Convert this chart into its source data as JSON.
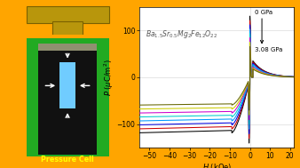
{
  "fig_width": 3.38,
  "fig_height": 1.89,
  "dpi": 100,
  "bg_color": "#FFA500",
  "cell_outer_color": "#22AA22",
  "cell_inner_color": "#111111",
  "cell_gasket_color": "#909070",
  "sample_color": "#70CCFF",
  "piston_color": "#B8960C",
  "pressure_cell_label": "Pressure Cell",
  "xlabel": "$H$ (kOe)",
  "ylabel": "$P$ ($\\mu$C/m$^2$)",
  "xlim": [
    -55,
    22
  ],
  "ylim": [
    -150,
    150
  ],
  "xticks": [
    -50,
    -40,
    -30,
    -20,
    -10,
    0,
    10,
    20
  ],
  "yticks": [
    -100,
    0,
    100
  ],
  "label_0gpa": "0 GPa",
  "label_max_gpa": "3.08 GPa",
  "colors": [
    "#000000",
    "#CC0000",
    "#0000DD",
    "#0099FF",
    "#00CCCC",
    "#CC00CC",
    "#CCCC00",
    "#666600"
  ]
}
